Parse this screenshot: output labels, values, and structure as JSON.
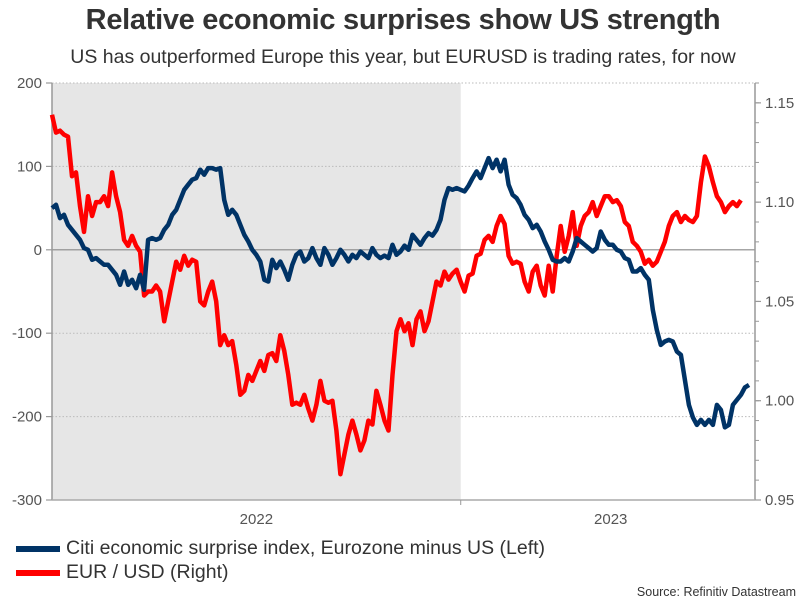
{
  "title": "Relative economic surprises show US strength",
  "subtitle": "US has outperformed Europe this year, but EURUSD is trading rates, for now",
  "source": "Source: Refinitiv Datastream",
  "colors": {
    "cesi": "#003366",
    "eurusd": "#ff0000",
    "shade": "#e6e6e6"
  },
  "chart_data": {
    "type": "line",
    "title": "Relative economic surprises show US strength",
    "xlabel": "",
    "ylabel_left": "",
    "ylabel_right": "",
    "x_ticks": [
      "2022",
      "2023"
    ],
    "xlim": [
      2022.0,
      2023.72
    ],
    "ylim_left": [
      -300,
      200
    ],
    "ylim_right": [
      0.95,
      1.16
    ],
    "yticks_left": [
      "200",
      "100",
      "0",
      "-100",
      "-200",
      "-300"
    ],
    "yticks_right": [
      "1.15",
      "1.10",
      "1.05",
      "1.00",
      "0.95"
    ],
    "shaded_period": [
      2022.0,
      2023.0
    ],
    "grid": "horizontal dotted",
    "legend_position": "bottom-left",
    "t0": 2022.0,
    "step_years": 0.0098,
    "series": [
      {
        "name": "Citi economic surprise index, Eurozone minus US (Left)",
        "axis": "left",
        "values": [
          50,
          54,
          38,
          42,
          30,
          24,
          18,
          12,
          2,
          0,
          -12,
          -10,
          -14,
          -18,
          -18,
          -24,
          -30,
          -42,
          -26,
          -42,
          -36,
          -46,
          -30,
          -48,
          12,
          14,
          12,
          14,
          24,
          30,
          42,
          48,
          60,
          72,
          78,
          84,
          86,
          96,
          90,
          98,
          98,
          96,
          98,
          60,
          42,
          48,
          42,
          30,
          18,
          10,
          0,
          -6,
          -14,
          -36,
          -38,
          -12,
          -22,
          -14,
          -24,
          -36,
          -18,
          -6,
          -2,
          -14,
          -10,
          2,
          -10,
          -18,
          2,
          -6,
          -18,
          -10,
          0,
          -6,
          -14,
          -6,
          -10,
          -2,
          -6,
          -10,
          2,
          -6,
          -10,
          -7,
          -10,
          6,
          -6,
          -2,
          5,
          0,
          18,
          12,
          6,
          14,
          20,
          17,
          24,
          36,
          60,
          74,
          72,
          74,
          72,
          70,
          77,
          86,
          94,
          86,
          98,
          110,
          98,
          108,
          94,
          108,
          78,
          66,
          62,
          54,
          42,
          36,
          26,
          30,
          22,
          10,
          0,
          -12,
          -14,
          -14,
          -10,
          -14,
          -2,
          14,
          10,
          6,
          2,
          -2,
          2,
          22,
          12,
          6,
          6,
          0,
          -2,
          -10,
          -12,
          -26,
          -26,
          -22,
          -30,
          -36,
          -72,
          -96,
          -114,
          -110,
          -108,
          -110,
          -122,
          -126,
          -156,
          -186,
          -201,
          -210,
          -204,
          -210,
          -204,
          -210,
          -186,
          -192,
          -213,
          -210,
          -186,
          -180,
          -174,
          -165,
          -162
        ]
      },
      {
        "name": "EUR / USD (Right)",
        "axis": "right",
        "values": [
          1.144,
          1.135,
          1.136,
          1.134,
          1.133,
          1.113,
          1.115,
          1.098,
          1.085,
          1.103,
          1.093,
          1.1,
          1.1,
          1.103,
          1.098,
          1.115,
          1.103,
          1.095,
          1.081,
          1.078,
          1.083,
          1.078,
          1.075,
          1.053,
          1.055,
          1.055,
          1.058,
          1.055,
          1.04,
          1.05,
          1.06,
          1.07,
          1.066,
          1.073,
          1.068,
          1.071,
          1.07,
          1.05,
          1.048,
          1.055,
          1.06,
          1.05,
          1.028,
          1.033,
          1.028,
          1.03,
          1.018,
          1.003,
          1.005,
          1.013,
          1.01,
          1.015,
          1.02,
          1.015,
          1.023,
          1.024,
          1.02,
          1.033,
          1.025,
          1.013,
          0.998,
          0.999,
          0.998,
          1.003,
          0.996,
          0.99,
          0.998,
          1.01,
          1.0,
          0.999,
          1.0,
          0.985,
          0.963,
          0.973,
          0.983,
          0.99,
          0.983,
          0.975,
          0.98,
          0.99,
          0.988,
          1.005,
          0.998,
          0.99,
          0.985,
          1.013,
          1.035,
          1.041,
          1.035,
          1.039,
          1.028,
          1.041,
          1.045,
          1.035,
          1.04,
          1.05,
          1.06,
          1.058,
          1.065,
          1.061,
          1.064,
          1.066,
          1.06,
          1.055,
          1.063,
          1.064,
          1.073,
          1.074,
          1.081,
          1.083,
          1.08,
          1.088,
          1.093,
          1.089,
          1.073,
          1.069,
          1.07,
          1.069,
          1.06,
          1.055,
          1.065,
          1.068,
          1.058,
          1.053,
          1.068,
          1.055,
          1.073,
          1.088,
          1.075,
          1.083,
          1.095,
          1.078,
          1.088,
          1.093,
          1.095,
          1.1,
          1.093,
          1.098,
          1.103,
          1.103,
          1.1,
          1.101,
          1.098,
          1.09,
          1.088,
          1.08,
          1.078,
          1.075,
          1.069,
          1.071,
          1.068,
          1.07,
          1.075,
          1.08,
          1.088,
          1.093,
          1.095,
          1.09,
          1.093,
          1.091,
          1.09,
          1.093,
          1.11,
          1.123,
          1.118,
          1.11,
          1.103,
          1.1,
          1.095,
          1.098,
          1.1,
          1.098,
          1.101
        ]
      }
    ]
  },
  "legend": [
    {
      "label": "Citi economic surprise index, Eurozone minus US (Left)"
    },
    {
      "label": "EUR / USD (Right)"
    }
  ]
}
